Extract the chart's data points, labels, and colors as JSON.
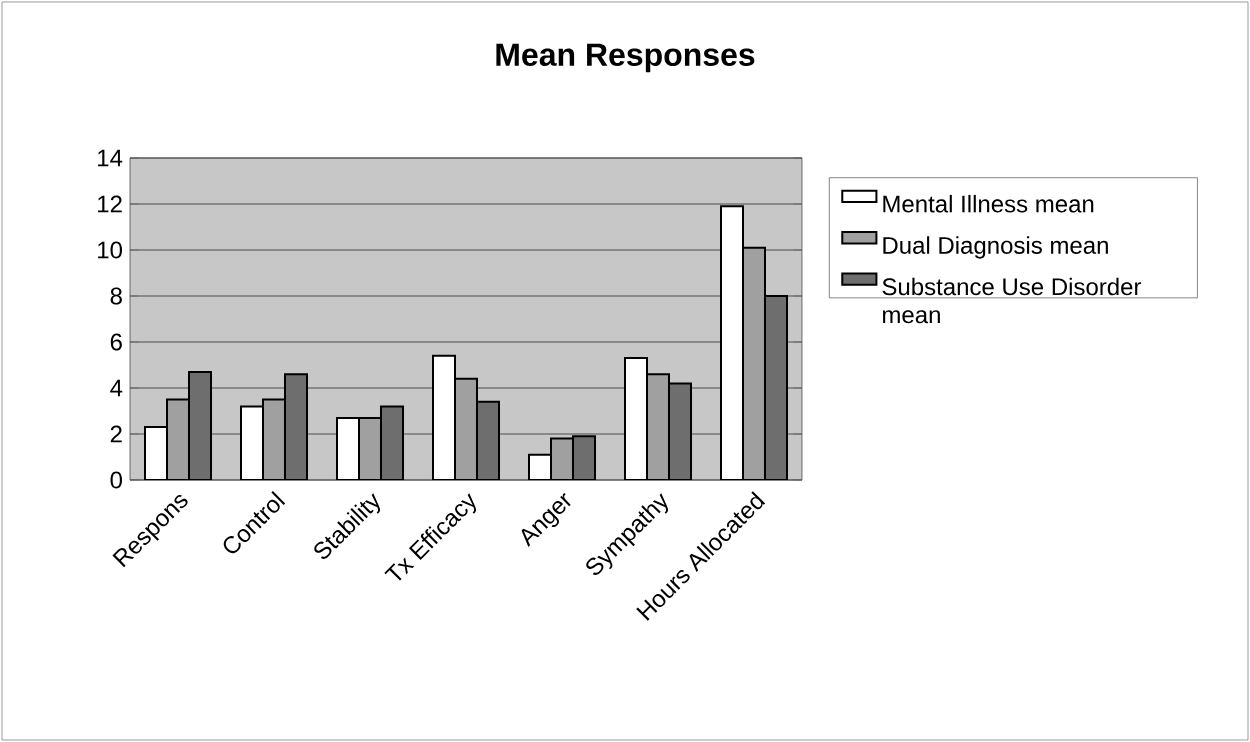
{
  "chart_data": {
    "type": "bar",
    "title": "Mean Responses",
    "categories": [
      "Respons",
      "Control",
      "Stability",
      "Tx Efficacy",
      "Anger",
      "Sympathy",
      "Hours Allocated"
    ],
    "series": [
      {
        "name": "Mental Illness mean",
        "color": "#ffffff",
        "values": [
          2.3,
          3.2,
          2.7,
          5.4,
          1.1,
          5.3,
          11.9
        ]
      },
      {
        "name": "Dual Diagnosis mean",
        "color": "#a0a0a0",
        "values": [
          3.5,
          3.5,
          2.7,
          4.4,
          1.8,
          4.6,
          10.1
        ]
      },
      {
        "name": "Substance Use Disorder mean",
        "color": "#6e6e6e",
        "values": [
          4.7,
          4.6,
          3.2,
          3.4,
          1.9,
          4.2,
          8.0
        ]
      }
    ],
    "ylim": [
      0,
      14
    ],
    "yticks": [
      0,
      2,
      4,
      6,
      8,
      10,
      12,
      14
    ],
    "grid": "y",
    "legend": "right"
  }
}
